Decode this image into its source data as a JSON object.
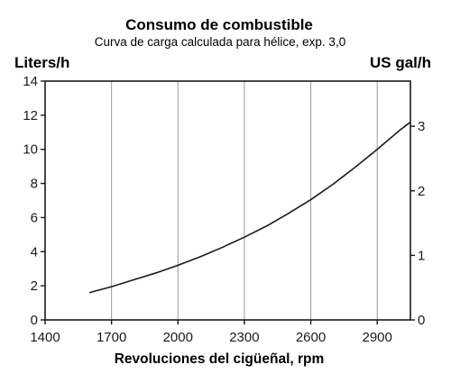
{
  "chart_data": {
    "type": "line",
    "title": "Consumo de combustible",
    "subtitle": "Curva de carga calculada para hélice, exp. 3,0",
    "ylabel": "Liters/h",
    "y2label": "US gal/h",
    "xlabel": "Revoluciones del cigüeñal, rpm",
    "xlim": [
      1400,
      3050
    ],
    "ylim": [
      0,
      14
    ],
    "y2lim": [
      0,
      3.7
    ],
    "x_ticks": [
      1400,
      1700,
      2000,
      2300,
      2600,
      2900
    ],
    "y_ticks": [
      0,
      2,
      4,
      6,
      8,
      10,
      12,
      14
    ],
    "y2_ticks": [
      0,
      1,
      2,
      3
    ],
    "grid": "vertical",
    "series": [
      {
        "x": [
          1600,
          1700,
          1800,
          1900,
          2000,
          2100,
          2200,
          2300,
          2400,
          2500,
          2600,
          2700,
          2800,
          2900,
          3000,
          3050
        ],
        "y": [
          1.6,
          1.95,
          2.35,
          2.75,
          3.2,
          3.7,
          4.25,
          4.85,
          5.5,
          6.25,
          7.05,
          7.95,
          8.95,
          10.0,
          11.1,
          11.6
        ]
      }
    ]
  }
}
